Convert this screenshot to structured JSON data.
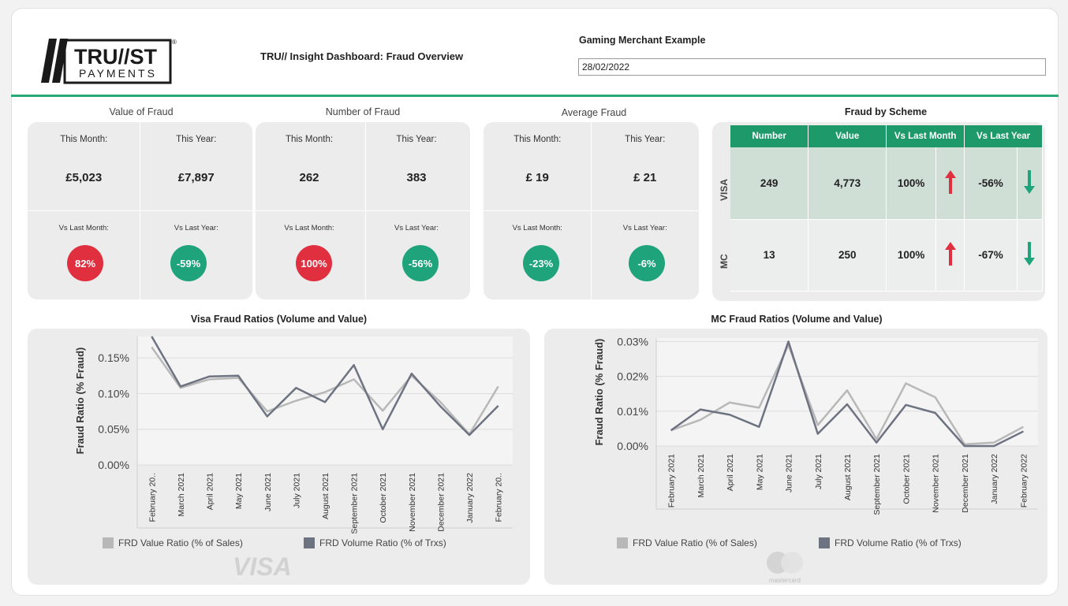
{
  "header": {
    "logo_text_top": "TRU//ST",
    "logo_text_bottom": "PAYMENTS",
    "dashboard_title": "TRU// Insight Dashboard: Fraud Overview",
    "merchant_label": "Gaming Merchant Example",
    "date_value": "28/02/2022"
  },
  "colors": {
    "accent": "#2aa876",
    "red": "#e03040",
    "green": "#1fa37a",
    "value_series": "#b8b8b8",
    "volume_series": "#6d7380"
  },
  "kpis": [
    {
      "title": "Value of Fraud",
      "this_month_label": "This Month:",
      "this_year_label": "This Year:",
      "this_month": "£5,023",
      "this_year": "£7,897",
      "vs_month_label": "Vs Last Month:",
      "vs_year_label": "Vs Last Year:",
      "vs_month": "82%",
      "vs_year": "-59%"
    },
    {
      "title": "Number of Fraud",
      "this_month_label": "This Month:",
      "this_year_label": "This Year:",
      "this_month": "262",
      "this_year": "383",
      "vs_month_label": "Vs Last Month:",
      "vs_year_label": "Vs Last Year:",
      "vs_month": "100%",
      "vs_year": "-56%"
    },
    {
      "title": "Average Fraud",
      "this_month_label": "This Month:",
      "this_year_label": "This Year:",
      "this_month": "£ 19",
      "this_year": "£ 21",
      "vs_month_label": "Vs Last Month:",
      "vs_year_label": "Vs Last Year:",
      "vs_month": "-23%",
      "vs_year": "-6%"
    }
  ],
  "scheme": {
    "title": "Fraud by Scheme",
    "headers": [
      "Number",
      "Value",
      "Vs Last Month",
      "Vs Last Year"
    ],
    "rows": [
      {
        "label": "VISA",
        "number": "249",
        "value": "4,773",
        "vs_month": "100%",
        "vs_month_dir": "up",
        "vs_year": "-56%",
        "vs_year_dir": "down"
      },
      {
        "label": "MC",
        "number": "13",
        "value": "250",
        "vs_month": "100%",
        "vs_month_dir": "up",
        "vs_year": "-67%",
        "vs_year_dir": "down"
      }
    ]
  },
  "charts_text": {
    "visa_title": "Visa Fraud Ratios (Volume and Value)",
    "mc_title": "MC Fraud Ratios (Volume and Value)",
    "visa_watermark": "VISA",
    "mc_watermark": "mastercard"
  },
  "chart_data": [
    {
      "type": "line",
      "title": "Visa Fraud Ratios (Volume and Value)",
      "ylabel": "Fraud Ratio (% Fraud)",
      "xlabel": "",
      "ylim": [
        0,
        0.0018
      ],
      "yticks": [
        "0.00%",
        "0.05%",
        "0.10%",
        "0.15%"
      ],
      "ytick_values": [
        0,
        0.0005,
        0.001,
        0.0015
      ],
      "categories": [
        "February 20..",
        "March 2021",
        "April 2021",
        "May 2021",
        "June 2021",
        "July 2021",
        "August 2021",
        "September 2021",
        "October 2021",
        "November 2021",
        "December 2021",
        "January 2022",
        "February 20.."
      ],
      "series": [
        {
          "name": "FRD Value Ratio (% of Sales)",
          "values": [
            0.00165,
            0.00108,
            0.0012,
            0.00122,
            0.00075,
            0.0009,
            0.00102,
            0.0012,
            0.00076,
            0.00125,
            0.00088,
            0.00043,
            0.0011
          ]
        },
        {
          "name": "FRD Volume Ratio (% of Trxs)",
          "values": [
            0.0018,
            0.0011,
            0.00124,
            0.00125,
            0.00068,
            0.00108,
            0.00088,
            0.0014,
            0.0005,
            0.00128,
            0.00082,
            0.00042,
            0.00083
          ]
        }
      ],
      "legend": "bottom",
      "grid": true
    },
    {
      "type": "line",
      "title": "MC Fraud Ratios (Volume and Value)",
      "ylabel": "Fraud Ratio (% Fraud)",
      "xlabel": "",
      "ylim": [
        0,
        0.00031
      ],
      "yticks": [
        "0.00%",
        "0.01%",
        "0.02%",
        "0.03%"
      ],
      "ytick_values": [
        0,
        0.0001,
        0.0002,
        0.0003
      ],
      "categories": [
        "February 2021",
        "March 2021",
        "April 2021",
        "May 2021",
        "June 2021",
        "July 2021",
        "August 2021",
        "September 2021",
        "October 2021",
        "November 2021",
        "December 2021",
        "January 2022",
        "February 2022"
      ],
      "series": [
        {
          "name": "FRD Value Ratio (% of Sales)",
          "values": [
            4.5e-05,
            7.5e-05,
            0.000125,
            0.00011,
            0.00029,
            6e-05,
            0.00016,
            2e-05,
            0.00018,
            0.00014,
            5e-06,
            1e-05,
            5.5e-05
          ]
        },
        {
          "name": "FRD Volume Ratio (% of Trxs)",
          "values": [
            4.5e-05,
            0.000105,
            9e-05,
            5.5e-05,
            0.0003,
            3.5e-05,
            0.00012,
            1e-05,
            0.000118,
            9.5e-05,
            0,
            0,
            4.2e-05
          ]
        }
      ],
      "legend": "bottom",
      "grid": true
    }
  ]
}
